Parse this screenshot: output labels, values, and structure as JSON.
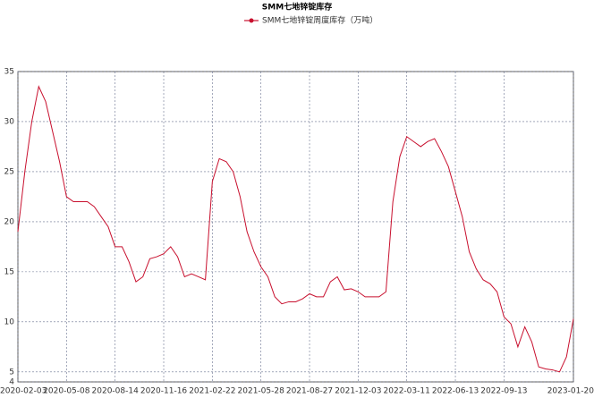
{
  "chart_data": {
    "type": "line",
    "title": "SMM七地锌锭库存",
    "categories": [
      "2020-02-03",
      null,
      null,
      null,
      null,
      null,
      null,
      "2020-05-08",
      null,
      null,
      null,
      null,
      null,
      null,
      "2020-08-14",
      null,
      null,
      null,
      null,
      null,
      null,
      "2020-11-16",
      null,
      null,
      null,
      null,
      null,
      null,
      "2021-02-22",
      null,
      null,
      null,
      null,
      null,
      null,
      "2021-05-28",
      null,
      null,
      null,
      null,
      null,
      null,
      "2021-08-27",
      null,
      null,
      null,
      null,
      null,
      null,
      "2021-12-03",
      null,
      null,
      null,
      null,
      null,
      null,
      "2022-03-11",
      null,
      null,
      null,
      null,
      null,
      null,
      "2022-06-13",
      null,
      null,
      null,
      null,
      null,
      null,
      "2022-09-13",
      null,
      null,
      null,
      null,
      null,
      null,
      null,
      null,
      null,
      "2023-01-20"
    ],
    "series": [
      {
        "name": "SMM七地锌锭周度库存（万吨）",
        "color": "#c8102e",
        "values": [
          19,
          25,
          30,
          33.5,
          32,
          29,
          26,
          22.5,
          22,
          22,
          22,
          21.5,
          20.5,
          19.5,
          17.5,
          17.5,
          16,
          14,
          14.5,
          16.3,
          16.5,
          16.8,
          17.5,
          16.5,
          14.5,
          14.8,
          14.5,
          14.2,
          24,
          26.3,
          26,
          25,
          22.5,
          19,
          17,
          15.5,
          14.5,
          12.5,
          11.8,
          12,
          12,
          12.3,
          12.8,
          12.5,
          12.5,
          14,
          14.5,
          13.2,
          13.3,
          13,
          12.5,
          12.5,
          12.5,
          13,
          22,
          26.5,
          28.5,
          28,
          27.5,
          28,
          28.3,
          27,
          25.5,
          23,
          20.5,
          17,
          15.3,
          14.2,
          13.8,
          13,
          10.5,
          9.8,
          7.5,
          9.5,
          8,
          5.5,
          5.3,
          5.2,
          5,
          6.5,
          10.3
        ]
      }
    ],
    "ylim": [
      4,
      35
    ],
    "yticks": [
      4,
      5,
      10,
      15,
      20,
      25,
      30,
      35
    ],
    "grid": true
  }
}
